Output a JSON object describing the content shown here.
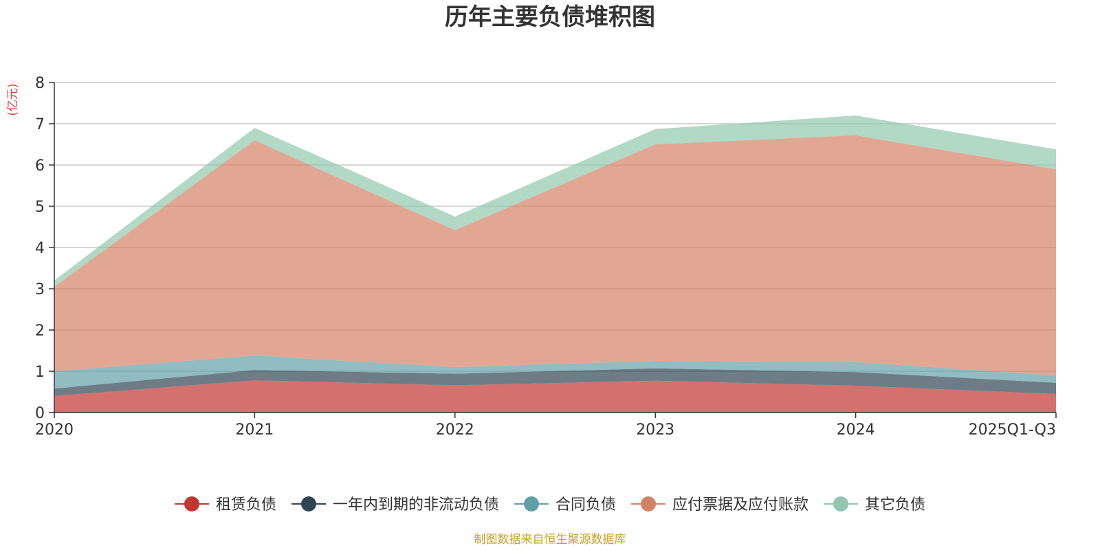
{
  "chart_data": {
    "type": "area",
    "stacked": true,
    "title": "历年主要负债堆积图",
    "ylabel": "(亿元)",
    "xlabel": "",
    "categories": [
      "2020",
      "2021",
      "2022",
      "2023",
      "2024",
      "2025Q1-Q3"
    ],
    "ylim": [
      0,
      8
    ],
    "yticks": [
      0,
      1,
      2,
      3,
      4,
      5,
      6,
      7,
      8
    ],
    "grid": true,
    "legend_position": "bottom",
    "series": [
      {
        "name": "租赁负债",
        "color": "#c23531",
        "values": [
          0.4,
          0.78,
          0.66,
          0.77,
          0.65,
          0.45
        ]
      },
      {
        "name": "一年内到期的非流动负债",
        "color": "#2f4554",
        "values": [
          0.18,
          0.25,
          0.28,
          0.3,
          0.33,
          0.27
        ]
      },
      {
        "name": "合同负债",
        "color": "#61a0a8",
        "values": [
          0.42,
          0.35,
          0.16,
          0.18,
          0.24,
          0.18
        ]
      },
      {
        "name": "应付票据及应付账款",
        "color": "#d48265",
        "values": [
          2.05,
          5.22,
          3.32,
          5.25,
          5.5,
          5.0
        ]
      },
      {
        "name": "其它负债",
        "color": "#91c7ae",
        "values": [
          0.15,
          0.3,
          0.33,
          0.37,
          0.48,
          0.48
        ]
      }
    ]
  },
  "source_note": "制图数据来自恒生聚源数据库"
}
